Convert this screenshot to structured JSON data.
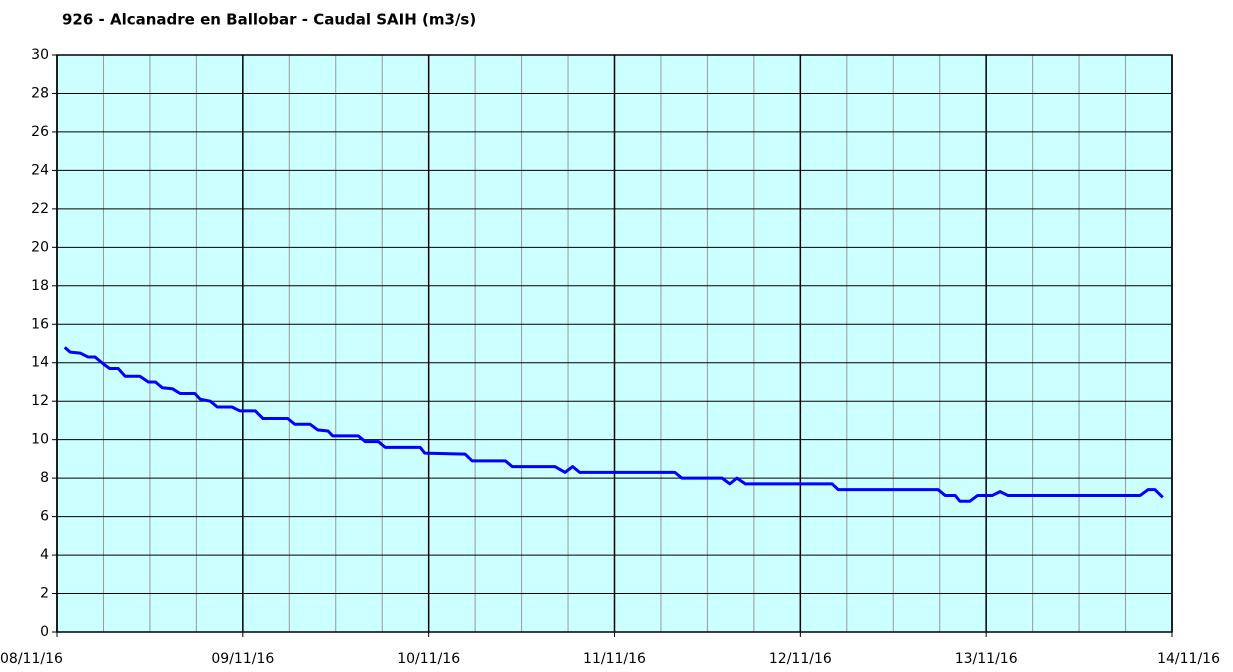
{
  "chart_data": {
    "type": "line",
    "title": "926 - Alcanadre en Ballobar - Caudal SAIH (m3/s)",
    "x": [
      1.0,
      1.7,
      3.0,
      4.0,
      4.9,
      6.1,
      6.8,
      7.9,
      8.8,
      10.7,
      11.8,
      12.7,
      13.6,
      14.9,
      15.9,
      17.8,
      18.5,
      19.8,
      20.7,
      22.6,
      23.6,
      25.6,
      26.6,
      29.8,
      30.7,
      32.7,
      33.7,
      35.0,
      35.6,
      38.9,
      39.8,
      41.5,
      42.4,
      46.9,
      47.5,
      52.7,
      53.6,
      57.9,
      58.8,
      64.3,
      65.6,
      66.6,
      67.5,
      79.8,
      80.7,
      85.9,
      86.9,
      87.8,
      88.9,
      100.1,
      100.9,
      113.8,
      114.7,
      116.0,
      116.6,
      117.9,
      118.9,
      120.8,
      121.8,
      122.8,
      139.9,
      140.9,
      141.8,
      142.8
    ],
    "series": [
      {
        "name": "Caudal",
        "color": "#0000ff",
        "values": [
          14.8,
          14.55,
          14.5,
          14.3,
          14.3,
          13.9,
          13.7,
          13.7,
          13.3,
          13.3,
          13.0,
          13.0,
          12.7,
          12.65,
          12.4,
          12.4,
          12.1,
          12.0,
          11.7,
          11.7,
          11.5,
          11.5,
          11.1,
          11.1,
          10.8,
          10.8,
          10.5,
          10.45,
          10.2,
          10.2,
          9.9,
          9.9,
          9.6,
          9.6,
          9.3,
          9.25,
          8.9,
          8.9,
          8.6,
          8.6,
          8.3,
          8.6,
          8.3,
          8.3,
          8.0,
          8.0,
          7.7,
          8.0,
          7.7,
          7.7,
          7.4,
          7.4,
          7.1,
          7.1,
          6.8,
          6.8,
          7.1,
          7.1,
          7.3,
          7.1,
          7.1,
          7.4,
          7.4,
          7.0
        ]
      }
    ],
    "xlim": [
      0,
      144
    ],
    "xticks": [
      {
        "value": 0,
        "label": "08/11/16"
      },
      {
        "value": 24,
        "label": "09/11/16"
      },
      {
        "value": 48,
        "label": "10/11/16"
      },
      {
        "value": 72,
        "label": "11/11/16"
      },
      {
        "value": 96,
        "label": "12/11/16"
      },
      {
        "value": 120,
        "label": "13/11/16"
      },
      {
        "value": 144,
        "label": "14/11/16"
      }
    ],
    "xminorticks": [
      6,
      12,
      18,
      30,
      36,
      42,
      54,
      60,
      66,
      78,
      84,
      90,
      102,
      108,
      114,
      126,
      132,
      138
    ],
    "ylim": [
      0,
      30
    ],
    "yticks": [
      0,
      2,
      4,
      6,
      8,
      10,
      12,
      14,
      16,
      18,
      20,
      22,
      24,
      26,
      28,
      30
    ],
    "grid": true,
    "plot_background": "#ccffff"
  }
}
